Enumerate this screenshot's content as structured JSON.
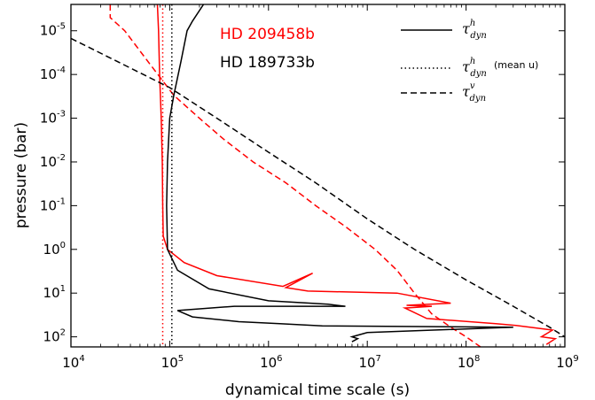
{
  "chart_data": {
    "type": "line",
    "xlabel": "dynamical time scale (s)",
    "ylabel": "pressure (bar)",
    "x_scale": "log",
    "y_scale": "log",
    "y_inverted": true,
    "xlim": [
      10000,
      1000000000
    ],
    "ylim": [
      2.5e-06,
      170
    ],
    "x_ticks": [
      {
        "mantissa": "10",
        "exp": "4",
        "value": 10000
      },
      {
        "mantissa": "10",
        "exp": "5",
        "value": 100000
      },
      {
        "mantissa": "10",
        "exp": "6",
        "value": 1000000
      },
      {
        "mantissa": "10",
        "exp": "7",
        "value": 10000000
      },
      {
        "mantissa": "10",
        "exp": "8",
        "value": 100000000
      },
      {
        "mantissa": "10",
        "exp": "9",
        "value": 1000000000
      }
    ],
    "y_ticks": [
      {
        "mantissa": "10",
        "exp": "-5",
        "value": 1e-05
      },
      {
        "mantissa": "10",
        "exp": "-4",
        "value": 0.0001
      },
      {
        "mantissa": "10",
        "exp": "-3",
        "value": 0.001
      },
      {
        "mantissa": "10",
        "exp": "-2",
        "value": 0.01
      },
      {
        "mantissa": "10",
        "exp": "-1",
        "value": 0.1
      },
      {
        "mantissa": "10",
        "exp": "0",
        "value": 1
      },
      {
        "mantissa": "10",
        "exp": "1",
        "value": 10
      },
      {
        "mantissa": "10",
        "exp": "2",
        "value": 100
      }
    ],
    "planets": [
      {
        "name": "HD 209458b",
        "color": "#ff0000"
      },
      {
        "name": "HD 189733b",
        "color": "#000000"
      }
    ],
    "legend": [
      {
        "style": "solid",
        "symbol": "τ",
        "sup": "h",
        "sub": "dyn",
        "note": ""
      },
      {
        "style": "dotted",
        "symbol": "τ",
        "sup": "h",
        "sub": "dyn",
        "note": "(mean u)"
      },
      {
        "style": "dashed",
        "symbol": "τ",
        "sup": "v",
        "sub": "dyn",
        "note": ""
      }
    ],
    "legend_position": "top-right",
    "series": [
      {
        "planet": "HD 209458b",
        "style": "solid",
        "color": "#ff0000",
        "points": [
          [
            75000,
            2.5e-06
          ],
          [
            77000,
            1e-05
          ],
          [
            79000,
            0.0001
          ],
          [
            82000,
            0.001
          ],
          [
            84000,
            0.01
          ],
          [
            85000,
            0.1
          ],
          [
            86000,
            0.5
          ],
          [
            95000,
            1
          ],
          [
            140000,
            2
          ],
          [
            300000,
            4
          ],
          [
            1400000,
            7
          ],
          [
            2800000,
            3.5
          ],
          [
            1500000,
            7.5
          ],
          [
            2500000,
            9
          ],
          [
            20000000,
            10
          ],
          [
            70000000,
            17
          ],
          [
            25000000,
            19
          ],
          [
            45000000,
            20
          ],
          [
            24000000,
            22
          ],
          [
            40000000,
            38
          ],
          [
            200000000,
            50
          ],
          [
            320000000,
            55
          ],
          [
            750000000,
            70
          ],
          [
            580000000,
            100
          ],
          [
            800000000,
            110
          ],
          [
            650000000,
            150
          ]
        ]
      },
      {
        "planet": "HD 209458b",
        "style": "dotted",
        "color": "#ff0000",
        "points": [
          [
            85000,
            2.5e-06
          ],
          [
            85000,
            170
          ]
        ]
      },
      {
        "planet": "HD 209458b",
        "style": "dashed",
        "color": "#ff0000",
        "points": [
          [
            25000,
            2.5e-06
          ],
          [
            25000,
            5e-06
          ],
          [
            35000,
            1e-05
          ],
          [
            60000,
            5e-05
          ],
          [
            110000,
            0.0003
          ],
          [
            200000,
            0.001
          ],
          [
            350000,
            0.003
          ],
          [
            700000,
            0.01
          ],
          [
            1500000,
            0.03
          ],
          [
            3000000,
            0.1
          ],
          [
            6000000,
            0.3
          ],
          [
            12000000,
            1
          ],
          [
            20000000,
            3
          ],
          [
            30000000,
            10
          ],
          [
            45000000,
            30
          ],
          [
            70000000,
            60
          ],
          [
            100000000,
            100
          ],
          [
            140000000,
            170
          ]
        ]
      },
      {
        "planet": "HD 189733b",
        "style": "solid",
        "color": "#000000",
        "points": [
          [
            220000,
            2.5e-06
          ],
          [
            170000,
            6e-06
          ],
          [
            150000,
            1e-05
          ],
          [
            130000,
            5e-05
          ],
          [
            110000,
            0.0003
          ],
          [
            100000,
            0.001
          ],
          [
            95000,
            0.01
          ],
          [
            93000,
            0.1
          ],
          [
            95000,
            1
          ],
          [
            120000,
            3
          ],
          [
            250000,
            8
          ],
          [
            1000000,
            15
          ],
          [
            4000000,
            18
          ],
          [
            6000000,
            20
          ],
          [
            450000,
            20
          ],
          [
            120000,
            25
          ],
          [
            170000,
            35
          ],
          [
            500000,
            45
          ],
          [
            1300000,
            50
          ],
          [
            3500000,
            56
          ],
          [
            300000000,
            60
          ],
          [
            10000000,
            80
          ],
          [
            7000000,
            100
          ],
          [
            8000000,
            110
          ],
          [
            7000000,
            130
          ]
        ]
      },
      {
        "planet": "HD 189733b",
        "style": "dotted",
        "color": "#000000",
        "points": [
          [
            105000,
            2.5e-06
          ],
          [
            105000,
            170
          ]
        ]
      },
      {
        "planet": "HD 189733b",
        "style": "dashed",
        "color": "#000000",
        "points": [
          [
            10000,
            1.5e-05
          ],
          [
            100000,
            0.0002
          ],
          [
            300000,
            0.001
          ],
          [
            1000000,
            0.006
          ],
          [
            3000000,
            0.03
          ],
          [
            10000000,
            0.2
          ],
          [
            30000000,
            1
          ],
          [
            100000000,
            5
          ],
          [
            300000000,
            20
          ],
          [
            700000000,
            60
          ],
          [
            1000000000,
            100
          ]
        ]
      }
    ]
  }
}
